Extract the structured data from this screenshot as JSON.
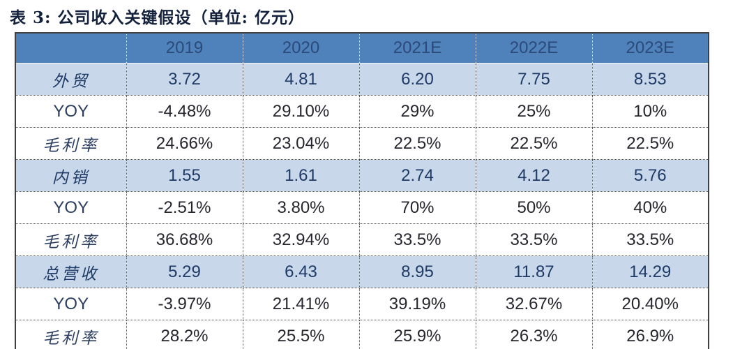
{
  "title": "表 3: 公司收入关键假设（单位: 亿元）",
  "colors": {
    "header_bg": "#4f81bb",
    "header_text": "#2b4a7a",
    "highlight_row_bg": "#c8d7ea",
    "highlight_row_text": "#1e3a66",
    "plain_row_text": "#26262e",
    "title_text": "#14213d",
    "outer_border": "#3f3f3f"
  },
  "table": {
    "columns": [
      "",
      "2019",
      "2020",
      "2021E",
      "2022E",
      "2023E"
    ],
    "rows": [
      {
        "label": "外贸",
        "cjk": true,
        "highlight": true,
        "values": [
          "3.72",
          "4.81",
          "6.20",
          "7.75",
          "8.53"
        ]
      },
      {
        "label": "YOY",
        "cjk": false,
        "highlight": false,
        "values": [
          "-4.48%",
          "29.10%",
          "29%",
          "25%",
          "10%"
        ]
      },
      {
        "label": "毛利率",
        "cjk": true,
        "highlight": false,
        "values": [
          "24.66%",
          "23.04%",
          "22.5%",
          "22.5%",
          "22.5%"
        ]
      },
      {
        "label": "内销",
        "cjk": true,
        "highlight": true,
        "values": [
          "1.55",
          "1.61",
          "2.74",
          "4.12",
          "5.76"
        ]
      },
      {
        "label": "YOY",
        "cjk": false,
        "highlight": false,
        "values": [
          "-2.51%",
          "3.80%",
          "70%",
          "50%",
          "40%"
        ]
      },
      {
        "label": "毛利率",
        "cjk": true,
        "highlight": false,
        "values": [
          "36.68%",
          "32.94%",
          "33.5%",
          "33.5%",
          "33.5%"
        ]
      },
      {
        "label": "总营收",
        "cjk": true,
        "highlight": true,
        "values": [
          "5.29",
          "6.43",
          "8.95",
          "11.87",
          "14.29"
        ]
      },
      {
        "label": "YOY",
        "cjk": false,
        "highlight": false,
        "values": [
          "-3.97%",
          "21.41%",
          "39.19%",
          "32.67%",
          "20.40%"
        ]
      },
      {
        "label": "毛利率",
        "cjk": true,
        "highlight": false,
        "values": [
          "28.2%",
          "25.5%",
          "25.9%",
          "26.3%",
          "26.9%"
        ]
      }
    ]
  }
}
